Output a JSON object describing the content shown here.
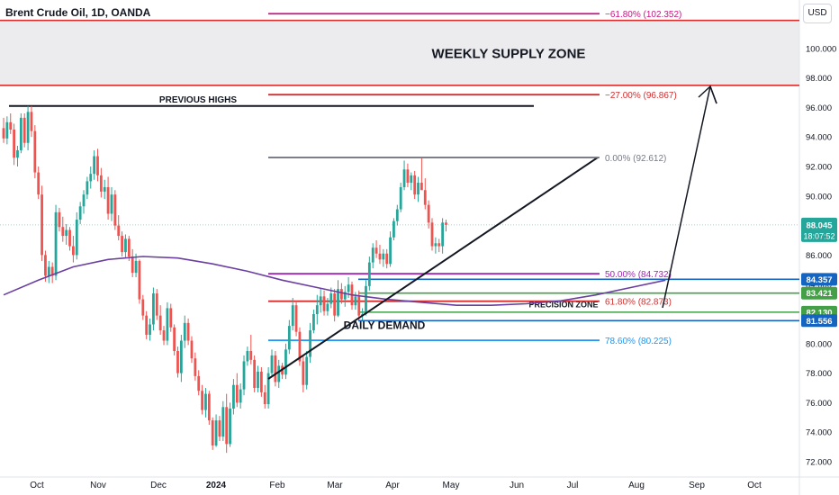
{
  "header": {
    "title": "Brent Crude Oil, 1D, OANDA",
    "currency": "USD"
  },
  "chart_data": {
    "type": "candlestick",
    "price_ylim": [
      71.5,
      102.0
    ],
    "y_ticks": [
      "100.000",
      "98.000",
      "96.000",
      "94.000",
      "92.000",
      "90.000",
      "88.000",
      "86.000",
      "84.000",
      "82.000",
      "80.000",
      "78.000",
      "76.000",
      "74.000",
      "72.000"
    ],
    "x_ticks": [
      {
        "label": "Oct",
        "bold": false
      },
      {
        "label": "Nov",
        "bold": false
      },
      {
        "label": "Dec",
        "bold": false
      },
      {
        "label": "2024",
        "bold": true
      },
      {
        "label": "Feb",
        "bold": false
      },
      {
        "label": "Mar",
        "bold": false
      },
      {
        "label": "Apr",
        "bold": false
      },
      {
        "label": "May",
        "bold": false
      },
      {
        "label": "Jun",
        "bold": false
      },
      {
        "label": "Jul",
        "bold": false
      },
      {
        "label": "Aug",
        "bold": false
      },
      {
        "label": "Sep",
        "bold": false
      },
      {
        "label": "Oct",
        "bold": false
      }
    ],
    "candles": [
      [
        94.6,
        95.3,
        93.6,
        93.9
      ],
      [
        93.9,
        95.4,
        93.5,
        95.0
      ],
      [
        95.0,
        95.6,
        94.2,
        94.5
      ],
      [
        94.5,
        94.9,
        92.1,
        92.6
      ],
      [
        92.6,
        93.4,
        92.0,
        93.1
      ],
      [
        93.1,
        95.6,
        92.9,
        95.3
      ],
      [
        95.3,
        95.6,
        93.3,
        93.6
      ],
      [
        93.6,
        96.1,
        93.1,
        95.7
      ],
      [
        95.7,
        96.1,
        94.0,
        94.4
      ],
      [
        94.4,
        94.8,
        91.2,
        91.6
      ],
      [
        91.6,
        92.0,
        89.8,
        90.1
      ],
      [
        90.1,
        90.7,
        85.6,
        86.0
      ],
      [
        86.0,
        86.3,
        84.2,
        84.6
      ],
      [
        84.6,
        85.6,
        84.1,
        85.2
      ],
      [
        85.2,
        85.5,
        84.1,
        84.6
      ],
      [
        84.6,
        89.4,
        84.3,
        88.9
      ],
      [
        88.9,
        89.2,
        87.6,
        87.9
      ],
      [
        87.9,
        88.6,
        86.9,
        87.3
      ],
      [
        87.3,
        88.1,
        86.7,
        87.7
      ],
      [
        87.7,
        87.9,
        86.3,
        86.6
      ],
      [
        86.6,
        87.3,
        85.5,
        86.0
      ],
      [
        86.0,
        88.9,
        85.7,
        88.4
      ],
      [
        88.4,
        89.6,
        88.1,
        89.3
      ],
      [
        89.3,
        90.4,
        88.8,
        90.1
      ],
      [
        90.1,
        91.3,
        89.8,
        91.0
      ],
      [
        91.0,
        92.0,
        90.5,
        91.5
      ],
      [
        91.5,
        93.1,
        91.1,
        92.7
      ],
      [
        92.7,
        93.2,
        91.0,
        91.4
      ],
      [
        91.4,
        91.9,
        89.9,
        90.3
      ],
      [
        90.3,
        91.1,
        89.8,
        90.6
      ],
      [
        90.6,
        91.3,
        88.4,
        88.8
      ],
      [
        88.8,
        90.6,
        88.3,
        90.1
      ],
      [
        90.1,
        90.4,
        87.7,
        88.0
      ],
      [
        88.0,
        88.7,
        87.0,
        87.3
      ],
      [
        87.3,
        87.6,
        85.9,
        86.2
      ],
      [
        86.2,
        87.4,
        85.8,
        87.1
      ],
      [
        87.1,
        87.3,
        85.6,
        85.9
      ],
      [
        85.9,
        86.4,
        84.5,
        84.8
      ],
      [
        84.8,
        86.1,
        84.5,
        85.6
      ],
      [
        85.6,
        85.7,
        82.7,
        83.0
      ],
      [
        83.0,
        83.3,
        81.6,
        81.9
      ],
      [
        81.9,
        82.2,
        80.3,
        80.6
      ],
      [
        80.6,
        81.7,
        80.2,
        81.3
      ],
      [
        81.3,
        83.8,
        80.9,
        83.4
      ],
      [
        83.4,
        83.7,
        81.6,
        81.9
      ],
      [
        81.9,
        82.6,
        80.6,
        80.9
      ],
      [
        80.9,
        81.2,
        79.9,
        80.2
      ],
      [
        80.2,
        82.8,
        79.9,
        82.4
      ],
      [
        82.4,
        82.7,
        80.8,
        81.1
      ],
      [
        81.1,
        81.3,
        79.2,
        79.5
      ],
      [
        79.5,
        79.8,
        77.7,
        78.0
      ],
      [
        78.0,
        80.6,
        77.4,
        80.2
      ],
      [
        80.2,
        81.9,
        79.7,
        81.4
      ],
      [
        81.4,
        81.7,
        79.9,
        80.2
      ],
      [
        80.2,
        80.5,
        78.7,
        79.0
      ],
      [
        79.0,
        79.4,
        77.5,
        77.8
      ],
      [
        77.8,
        78.2,
        76.5,
        76.8
      ],
      [
        76.8,
        77.2,
        75.2,
        75.5
      ],
      [
        75.5,
        77.0,
        75.0,
        76.6
      ],
      [
        76.6,
        76.8,
        74.5,
        74.8
      ],
      [
        74.8,
        75.0,
        72.8,
        73.1
      ],
      [
        73.1,
        75.2,
        73.0,
        74.8
      ],
      [
        74.8,
        75.1,
        73.4,
        73.7
      ],
      [
        73.7,
        76.1,
        73.4,
        75.7
      ],
      [
        75.7,
        76.6,
        72.6,
        73.2
      ],
      [
        73.2,
        76.0,
        73.0,
        75.6
      ],
      [
        75.6,
        77.6,
        75.2,
        77.2
      ],
      [
        77.2,
        78.0,
        75.7,
        76.0
      ],
      [
        76.0,
        77.3,
        75.6,
        76.9
      ],
      [
        76.9,
        79.2,
        76.5,
        78.8
      ],
      [
        78.8,
        79.8,
        78.5,
        79.5
      ],
      [
        79.5,
        80.6,
        78.6,
        78.9
      ],
      [
        78.9,
        79.2,
        76.7,
        77.0
      ],
      [
        77.0,
        78.5,
        76.7,
        78.1
      ],
      [
        78.1,
        78.4,
        76.4,
        76.7
      ],
      [
        76.7,
        77.2,
        75.6,
        75.9
      ],
      [
        75.9,
        78.4,
        75.6,
        78.0
      ],
      [
        78.0,
        79.6,
        77.7,
        79.2
      ],
      [
        79.2,
        79.5,
        77.1,
        77.4
      ],
      [
        77.4,
        78.9,
        77.0,
        78.5
      ],
      [
        78.5,
        78.7,
        77.6,
        77.9
      ],
      [
        77.9,
        80.0,
        77.6,
        79.6
      ],
      [
        79.6,
        81.6,
        79.3,
        81.2
      ],
      [
        81.2,
        83.1,
        80.9,
        82.6
      ],
      [
        82.6,
        82.9,
        80.5,
        80.8
      ],
      [
        80.8,
        81.1,
        78.5,
        78.8
      ],
      [
        78.8,
        79.2,
        76.7,
        77.2
      ],
      [
        77.2,
        79.5,
        76.9,
        79.1
      ],
      [
        79.1,
        81.4,
        78.7,
        80.9
      ],
      [
        80.9,
        82.3,
        80.7,
        82.0
      ],
      [
        82.0,
        83.3,
        81.3,
        82.6
      ],
      [
        82.6,
        83.7,
        82.1,
        83.2
      ],
      [
        83.2,
        83.6,
        81.9,
        82.2
      ],
      [
        82.2,
        83.1,
        81.9,
        82.7
      ],
      [
        82.7,
        83.8,
        82.4,
        83.4
      ],
      [
        83.4,
        83.7,
        81.5,
        81.9
      ],
      [
        81.9,
        84.3,
        81.8,
        83.7
      ],
      [
        83.7,
        84.1,
        82.7,
        83.0
      ],
      [
        83.0,
        83.9,
        82.5,
        83.5
      ],
      [
        83.5,
        84.5,
        83.1,
        84.0
      ],
      [
        84.0,
        84.2,
        82.3,
        82.6
      ],
      [
        82.6,
        83.5,
        82.3,
        83.2
      ],
      [
        83.2,
        83.6,
        81.6,
        81.9
      ],
      [
        81.9,
        82.4,
        81.6,
        82.0
      ],
      [
        82.0,
        84.3,
        81.9,
        83.9
      ],
      [
        83.9,
        85.9,
        83.6,
        85.5
      ],
      [
        85.5,
        86.8,
        85.1,
        86.5
      ],
      [
        86.5,
        87.0,
        85.8,
        86.1
      ],
      [
        86.1,
        86.7,
        85.4,
        85.7
      ],
      [
        85.7,
        86.4,
        85.2,
        86.1
      ],
      [
        86.1,
        86.4,
        85.1,
        85.4
      ],
      [
        85.4,
        87.6,
        85.2,
        87.2
      ],
      [
        87.2,
        88.5,
        87.0,
        88.3
      ],
      [
        88.3,
        89.4,
        88.0,
        89.1
      ],
      [
        89.1,
        90.9,
        88.9,
        90.6
      ],
      [
        90.6,
        92.4,
        90.4,
        91.8
      ],
      [
        91.8,
        92.2,
        90.6,
        90.9
      ],
      [
        90.9,
        91.6,
        90.4,
        91.4
      ],
      [
        91.4,
        91.7,
        89.8,
        90.1
      ],
      [
        90.1,
        91.3,
        89.6,
        90.9
      ],
      [
        90.9,
        92.6,
        90.6,
        90.4
      ],
      [
        90.4,
        91.2,
        89.1,
        89.4
      ],
      [
        89.4,
        89.7,
        87.8,
        88.2
      ],
      [
        88.2,
        88.5,
        86.3,
        86.6
      ],
      [
        86.6,
        87.2,
        86.1,
        86.8
      ],
      [
        86.8,
        87.1,
        86.2,
        86.6
      ],
      [
        86.6,
        88.5,
        86.1,
        88.2
      ],
      [
        88.2,
        88.4,
        87.6,
        88.045
      ]
    ],
    "ma_series": [
      [
        0,
        83.3
      ],
      [
        10,
        84.3
      ],
      [
        20,
        85.2
      ],
      [
        30,
        85.7
      ],
      [
        40,
        85.9
      ],
      [
        50,
        85.8
      ],
      [
        60,
        85.4
      ],
      [
        70,
        84.9
      ],
      [
        80,
        84.3
      ],
      [
        90,
        83.8
      ],
      [
        100,
        83.3
      ],
      [
        110,
        83.0
      ],
      [
        120,
        82.8
      ],
      [
        130,
        82.6
      ],
      [
        140,
        82.6
      ],
      [
        150,
        82.7
      ],
      [
        160,
        82.9
      ],
      [
        170,
        83.3
      ],
      [
        180,
        83.8
      ],
      [
        190,
        84.3
      ]
    ],
    "fib_levels": [
      {
        "ratio": "-61.80%",
        "value": 102.352,
        "label": "−61.80% (102.352)",
        "color": "#c71585"
      },
      {
        "ratio": "-27.00%",
        "value": 96.867,
        "label": "−27.00% (96.867)",
        "color": "#d32f2f"
      },
      {
        "ratio": "0.00%",
        "value": 92.612,
        "label": "0.00% (92.612)",
        "color": "#787b86"
      },
      {
        "ratio": "50.00%",
        "value": 84.732,
        "label": "50.00% (84.732)",
        "color": "#9c27b0"
      },
      {
        "ratio": "61.80%",
        "value": 82.873,
        "label": "61.80% (82.873)",
        "color": "#d32f2f"
      },
      {
        "ratio": "78.60%",
        "value": 80.225,
        "label": "78.60% (80.225)",
        "color": "#2196f3"
      }
    ],
    "annotations": {
      "supply_zone": "WEEKLY SUPPLY ZONE",
      "previous_highs": "PREVIOUS HIGHS",
      "precision_zone": "PRECISION ZONE",
      "daily_demand": "DAILY DEMAND"
    },
    "zone_prices": {
      "supply_top": 101.9,
      "supply_bottom": 97.5,
      "previous_highs": 96.1,
      "triangle_apex_price": 92.612,
      "triangle_base_price": 77.0
    },
    "price_tags": {
      "current": {
        "price": "88.045",
        "countdown": "18:07:52",
        "color": "#26a69a",
        "value": 88.045
      },
      "levels": [
        {
          "label": "84.357",
          "value": 84.357,
          "color": "#1565c0"
        },
        {
          "label": "83.421",
          "value": 83.421,
          "color": "#43a047"
        },
        {
          "label": "82.130",
          "value": 82.13,
          "color": "#43a047"
        },
        {
          "label": "81.556",
          "value": 81.556,
          "color": "#1565c0"
        }
      ]
    },
    "colors": {
      "up": "#26a69a",
      "down": "#ef5350",
      "ma": "#6a3fa0"
    }
  }
}
